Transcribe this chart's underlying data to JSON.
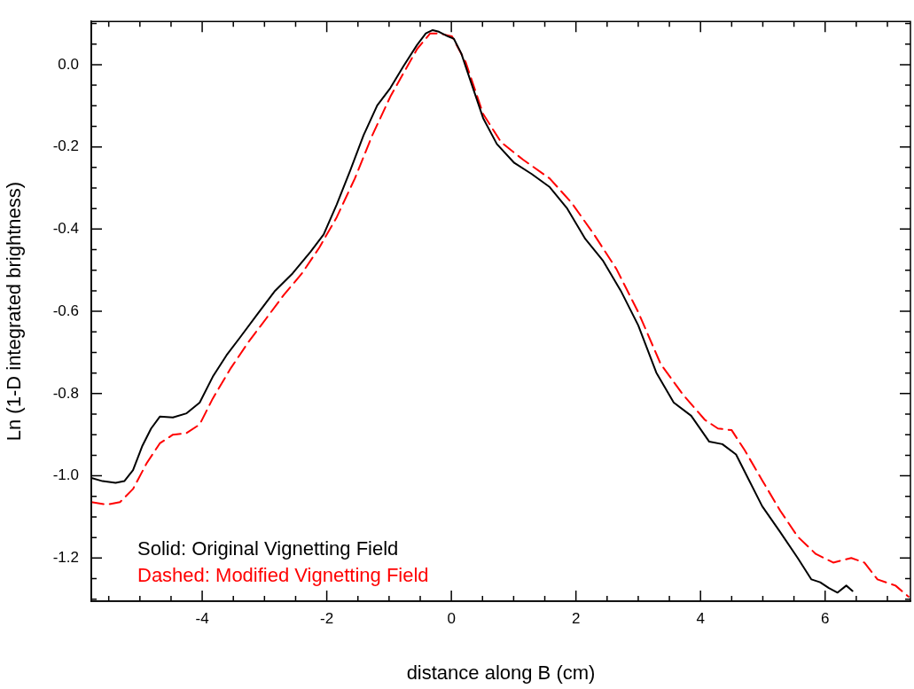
{
  "chart_data": {
    "type": "line",
    "xlabel": "distance along B (cm)",
    "ylabel": "Ln (1-D integrated brightness)",
    "xlim": [
      -5.78,
      7.37
    ],
    "xticks": [
      -4,
      -2,
      0,
      2,
      4,
      6
    ],
    "ylim": [
      -1.305,
      0.105
    ],
    "yticks": [
      {
        "value": -1.2,
        "label": "-1.2"
      },
      {
        "value": -1.0,
        "label": "-1.0"
      },
      {
        "value": -0.8,
        "label": "-0.8"
      },
      {
        "value": -0.6,
        "label": "-0.6"
      },
      {
        "value": -0.4,
        "label": "-0.4"
      },
      {
        "value": -0.2,
        "label": "-0.2"
      },
      {
        "value": 0,
        "label": "0.0"
      }
    ],
    "grid": false,
    "legend": "bottom left",
    "marker": "none",
    "series": [
      {
        "name": "Solid: Original Vignetting Field",
        "color": "#000000",
        "line_style": "solid",
        "x": [
          -5.78,
          -5.6,
          -5.39,
          -5.25,
          -5.11,
          -4.96,
          -4.82,
          -4.68,
          -4.47,
          -4.25,
          -4.04,
          -3.83,
          -3.61,
          -3.4,
          -3.12,
          -2.83,
          -2.55,
          -2.26,
          -2.05,
          -1.84,
          -1.62,
          -1.41,
          -1.19,
          -0.98,
          -0.77,
          -0.55,
          -0.41,
          -0.3,
          -0.2,
          -0.06,
          0.04,
          0.16,
          0.3,
          0.51,
          0.73,
          1.01,
          1.29,
          1.58,
          1.86,
          2.15,
          2.43,
          2.72,
          3.0,
          3.29,
          3.57,
          3.85,
          4.14,
          4.35,
          4.57,
          4.78,
          4.99,
          5.28,
          5.56,
          5.78,
          5.92,
          6.06,
          6.2,
          6.34,
          6.44
        ],
        "values": [
          -1.005,
          -1.013,
          -1.017,
          -1.013,
          -0.986,
          -0.927,
          -0.885,
          -0.856,
          -0.858,
          -0.848,
          -0.822,
          -0.759,
          -0.707,
          -0.665,
          -0.608,
          -0.55,
          -0.508,
          -0.455,
          -0.413,
          -0.34,
          -0.256,
          -0.172,
          -0.099,
          -0.057,
          -0.004,
          0.048,
          0.076,
          0.084,
          0.08,
          0.069,
          0.063,
          0.027,
          -0.036,
          -0.13,
          -0.193,
          -0.239,
          -0.266,
          -0.298,
          -0.35,
          -0.424,
          -0.476,
          -0.55,
          -0.634,
          -0.749,
          -0.822,
          -0.854,
          -0.917,
          -0.923,
          -0.948,
          -1.011,
          -1.074,
          -1.137,
          -1.2,
          -1.252,
          -1.259,
          -1.273,
          -1.284,
          -1.267,
          -1.28
        ]
      },
      {
        "name": "Dashed: Modified Vignetting Field",
        "color": "#ff0000",
        "line_style": "dashed",
        "x": [
          -5.78,
          -5.53,
          -5.32,
          -5.11,
          -4.89,
          -4.68,
          -4.47,
          -4.25,
          -4.04,
          -3.83,
          -3.54,
          -3.26,
          -2.97,
          -2.69,
          -2.4,
          -2.12,
          -1.84,
          -1.55,
          -1.27,
          -0.98,
          -0.77,
          -0.55,
          -0.34,
          -0.2,
          0.01,
          0.23,
          0.51,
          0.8,
          1.15,
          1.58,
          1.93,
          2.29,
          2.65,
          3.0,
          3.36,
          3.71,
          4.07,
          4.28,
          4.5,
          4.71,
          4.99,
          5.28,
          5.56,
          5.85,
          6.13,
          6.42,
          6.63,
          6.84,
          7.13,
          7.34
        ],
        "values": [
          -1.064,
          -1.07,
          -1.064,
          -1.032,
          -0.969,
          -0.921,
          -0.9,
          -0.896,
          -0.875,
          -0.812,
          -0.738,
          -0.675,
          -0.617,
          -0.56,
          -0.508,
          -0.445,
          -0.371,
          -0.277,
          -0.172,
          -0.078,
          -0.021,
          0.038,
          0.076,
          0.076,
          0.069,
          0.006,
          -0.12,
          -0.189,
          -0.231,
          -0.277,
          -0.336,
          -0.413,
          -0.497,
          -0.602,
          -0.728,
          -0.801,
          -0.864,
          -0.885,
          -0.889,
          -0.938,
          -1.011,
          -1.085,
          -1.148,
          -1.19,
          -1.211,
          -1.2,
          -1.211,
          -1.252,
          -1.267,
          -1.294
        ]
      }
    ]
  }
}
